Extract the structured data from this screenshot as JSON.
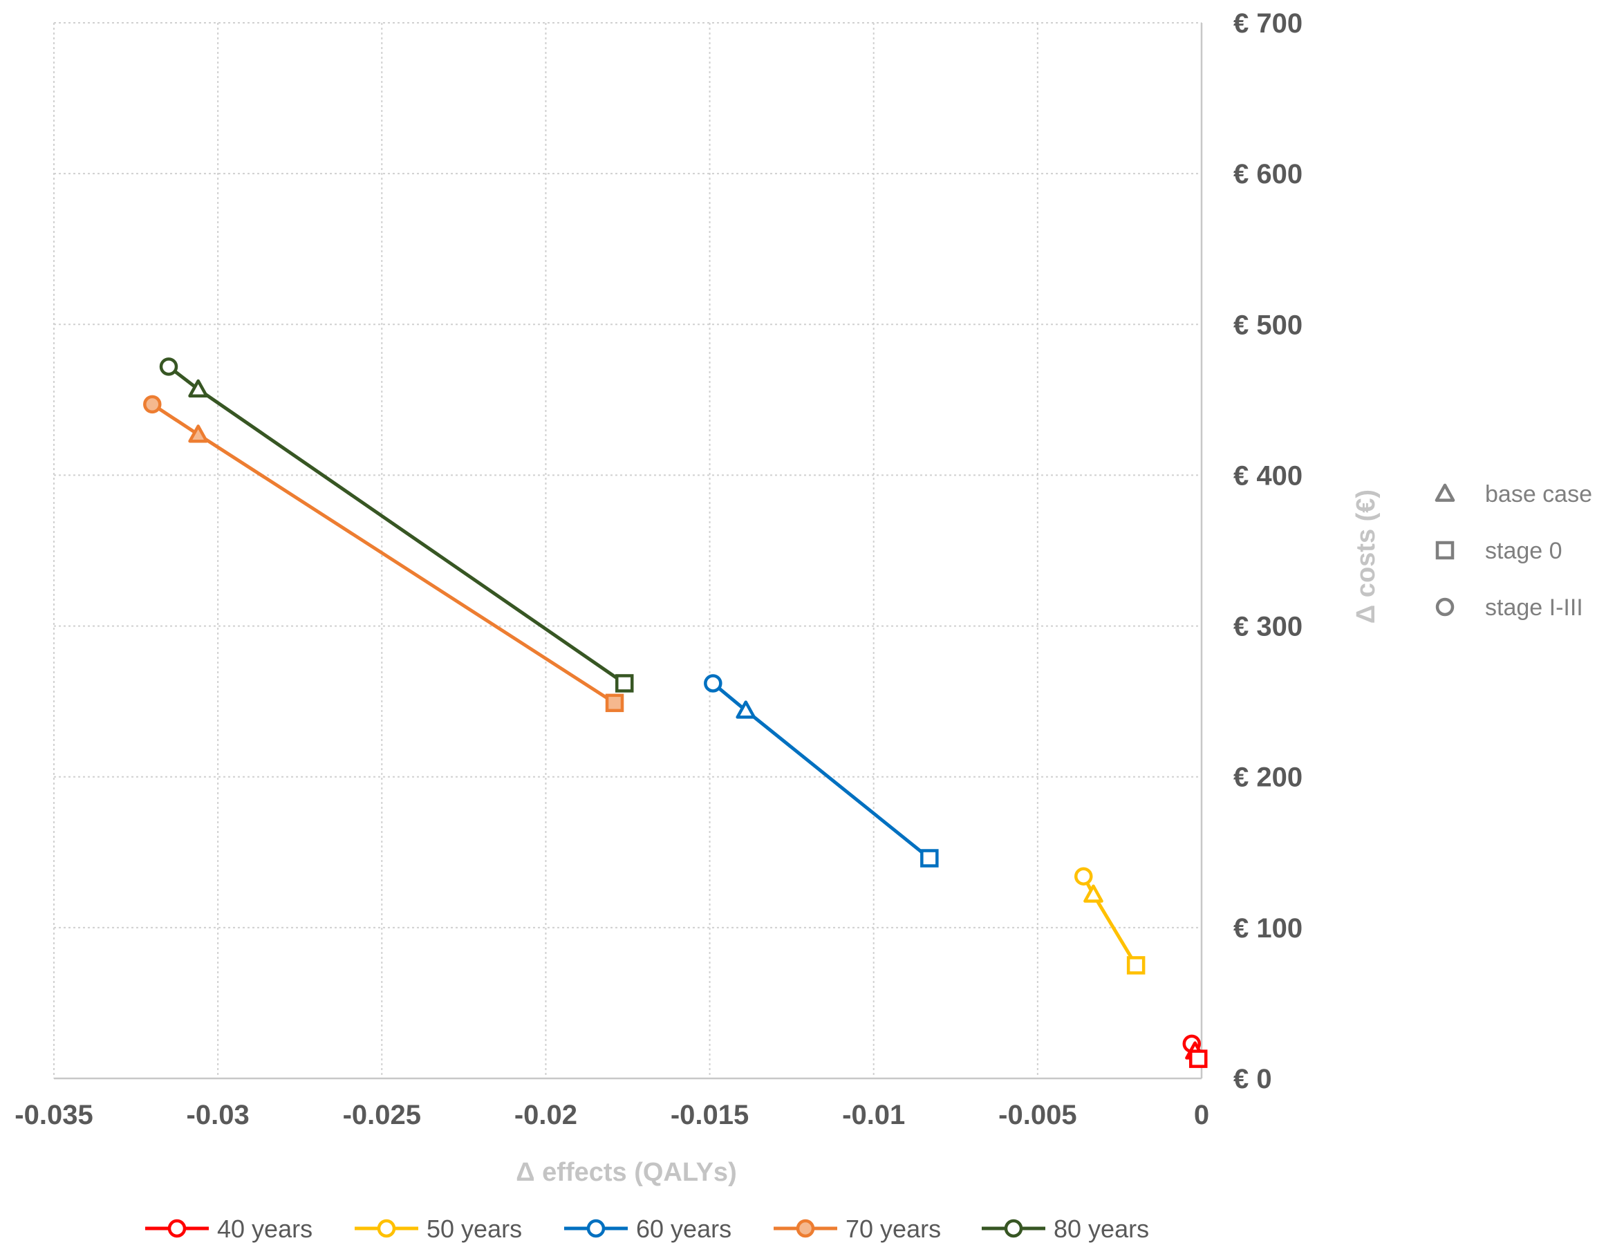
{
  "chart_data": {
    "type": "scatter",
    "title": "",
    "xlabel": "Δ effects (QALYs)",
    "ylabel": "Δ costs (€)",
    "xlim": [
      -0.035,
      0
    ],
    "ylim": [
      0,
      700
    ],
    "x_ticks": [
      -0.035,
      -0.03,
      -0.025,
      -0.02,
      -0.015,
      -0.01,
      -0.005,
      0
    ],
    "x_tick_labels": [
      "-0.035",
      "-0.03",
      "-0.025",
      "-0.02",
      "-0.015",
      "-0.01",
      "-0.005",
      "0"
    ],
    "y_ticks": [
      0,
      100,
      200,
      300,
      400,
      500,
      600,
      700
    ],
    "y_tick_labels": [
      "€ 0",
      "€ 100",
      "€ 200",
      "€ 300",
      "€ 400",
      "€ 500",
      "€ 600",
      "€ 700"
    ],
    "y_axis_position": "right",
    "grid": true,
    "series": [
      {
        "name": "40 years",
        "color": "#ff0000",
        "points": [
          {
            "scenario": "stage I-III",
            "x": -0.0003,
            "y": 23
          },
          {
            "scenario": "base case",
            "x": -0.0002,
            "y": 18
          },
          {
            "scenario": "stage 0",
            "x": -0.0001,
            "y": 13
          }
        ]
      },
      {
        "name": "50 years",
        "color": "#ffc000",
        "points": [
          {
            "scenario": "stage I-III",
            "x": -0.0036,
            "y": 134
          },
          {
            "scenario": "base case",
            "x": -0.0033,
            "y": 122
          },
          {
            "scenario": "stage 0",
            "x": -0.002,
            "y": 75
          }
        ]
      },
      {
        "name": "60 years",
        "color": "#0070c0",
        "points": [
          {
            "scenario": "stage I-III",
            "x": -0.0149,
            "y": 262
          },
          {
            "scenario": "base case",
            "x": -0.0139,
            "y": 244
          },
          {
            "scenario": "stage 0",
            "x": -0.0083,
            "y": 146
          }
        ]
      },
      {
        "name": "70 years",
        "color": "#ed7d31",
        "points": [
          {
            "scenario": "stage I-III",
            "x": -0.032,
            "y": 447
          },
          {
            "scenario": "base case",
            "x": -0.0306,
            "y": 427
          },
          {
            "scenario": "stage 0",
            "x": -0.0179,
            "y": 249
          }
        ]
      },
      {
        "name": "80 years",
        "color": "#375623",
        "points": [
          {
            "scenario": "stage I-III",
            "x": -0.0315,
            "y": 472
          },
          {
            "scenario": "base case",
            "x": -0.0306,
            "y": 457
          },
          {
            "scenario": "stage 0",
            "x": -0.0176,
            "y": 262
          }
        ]
      }
    ],
    "legend_position": "bottom",
    "marker_legend": [
      {
        "shape": "triangle",
        "label": "base case"
      },
      {
        "shape": "square",
        "label": "stage 0"
      },
      {
        "shape": "circle",
        "label": "stage I-III"
      }
    ],
    "marker_legend_position": "right"
  }
}
